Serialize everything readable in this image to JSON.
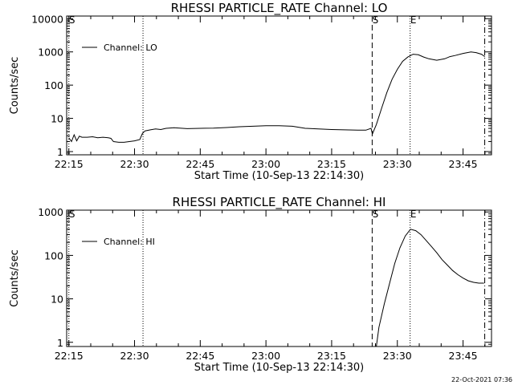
{
  "chart_data": [
    {
      "type": "line",
      "title": "RHESSI PARTICLE_RATE Channel: LO",
      "xlabel": "Start Time (10-Sep-13 22:14:30)",
      "ylabel": "Counts/sec",
      "yscale": "log",
      "ylim": [
        0.8,
        12000
      ],
      "xlim": [
        22.2417,
        23.8583
      ],
      "x_ticks": [
        "22:15",
        "22:30",
        "22:45",
        "23:00",
        "23:15",
        "23:30",
        "23:45"
      ],
      "x_tick_values": [
        22.25,
        22.5,
        22.75,
        23.0,
        23.25,
        23.5,
        23.75
      ],
      "y_ticks": [
        "1",
        "10",
        "100",
        "1000",
        "10000"
      ],
      "y_tick_values": [
        1,
        10,
        100,
        1000,
        10000
      ],
      "legend": {
        "label": "Channel: LO",
        "position": "top-left"
      },
      "markers": [
        {
          "label": "S",
          "x": 22.25,
          "style": "dotted-edge"
        },
        {
          "label": "",
          "x": 22.5322,
          "style": "dotted"
        },
        {
          "label": "S",
          "x": 23.4042,
          "style": "dashed"
        },
        {
          "label": "E",
          "x": 23.5486,
          "style": "dotted"
        },
        {
          "label": "",
          "x": 23.8325,
          "style": "dashdot"
        }
      ],
      "series": [
        {
          "name": "Channel: LO",
          "x": [
            22.25,
            22.26,
            22.27,
            22.28,
            22.29,
            22.3,
            22.32,
            22.34,
            22.36,
            22.38,
            22.4,
            22.41,
            22.42,
            22.44,
            22.46,
            22.48,
            22.5,
            22.52,
            22.53,
            22.54,
            22.56,
            22.58,
            22.6,
            22.62,
            22.65,
            22.7,
            22.75,
            22.8,
            22.85,
            22.9,
            22.95,
            23.0,
            23.05,
            23.1,
            23.15,
            23.2,
            23.25,
            23.3,
            23.35,
            23.38,
            23.4,
            23.405,
            23.42,
            23.44,
            23.46,
            23.48,
            23.5,
            23.52,
            23.54,
            23.56,
            23.58,
            23.6,
            23.62,
            23.65,
            23.68,
            23.7,
            23.72,
            23.75,
            23.78,
            23.8,
            23.82,
            23.833
          ],
          "y": [
            2.6,
            2.0,
            3.2,
            2.1,
            2.9,
            2.7,
            2.7,
            2.8,
            2.6,
            2.7,
            2.6,
            2.5,
            2.0,
            1.9,
            1.9,
            2.0,
            2.1,
            2.3,
            3.5,
            4.2,
            4.5,
            4.8,
            4.6,
            5.0,
            5.2,
            4.9,
            5.0,
            5.1,
            5.3,
            5.6,
            5.8,
            6.0,
            6.0,
            5.8,
            5.0,
            4.8,
            4.6,
            4.5,
            4.4,
            4.4,
            5.0,
            3.4,
            6.5,
            20,
            60,
            150,
            300,
            520,
            700,
            850,
            820,
            700,
            620,
            560,
            620,
            720,
            780,
            900,
            1000,
            950,
            850,
            720
          ]
        }
      ]
    },
    {
      "type": "line",
      "title": "RHESSI PARTICLE_RATE Channel: HI",
      "xlabel": "Start Time (10-Sep-13 22:14:30)",
      "ylabel": "Counts/sec",
      "yscale": "log",
      "ylim": [
        0.8,
        1100
      ],
      "xlim": [
        22.2417,
        23.8583
      ],
      "x_ticks": [
        "22:15",
        "22:30",
        "22:45",
        "23:00",
        "23:15",
        "23:30",
        "23:45"
      ],
      "x_tick_values": [
        22.25,
        22.5,
        22.75,
        23.0,
        23.25,
        23.5,
        23.75
      ],
      "y_ticks": [
        "1",
        "10",
        "100",
        "1000"
      ],
      "y_tick_values": [
        1,
        10,
        100,
        1000
      ],
      "legend": {
        "label": "Channel: HI",
        "position": "top-left"
      },
      "markers": [
        {
          "label": "S",
          "x": 22.25,
          "style": "dotted-edge"
        },
        {
          "label": "",
          "x": 22.5322,
          "style": "dotted"
        },
        {
          "label": "S",
          "x": 23.4042,
          "style": "dashed"
        },
        {
          "label": "E",
          "x": 23.5486,
          "style": "dotted"
        },
        {
          "label": "",
          "x": 23.8325,
          "style": "dashdot"
        }
      ],
      "series": [
        {
          "name": "Channel: HI",
          "x": [
            23.42,
            23.43,
            23.45,
            23.47,
            23.49,
            23.51,
            23.53,
            23.55,
            23.57,
            23.59,
            23.61,
            23.63,
            23.65,
            23.67,
            23.69,
            23.71,
            23.73,
            23.75,
            23.77,
            23.79,
            23.81,
            23.83
          ],
          "y": [
            0.8,
            2.2,
            7.5,
            22,
            65,
            150,
            280,
            400,
            370,
            300,
            220,
            160,
            115,
            80,
            60,
            45,
            36,
            30,
            26,
            24,
            23,
            23
          ]
        }
      ]
    }
  ],
  "timestamp": "22-Oct-2021 07:36"
}
